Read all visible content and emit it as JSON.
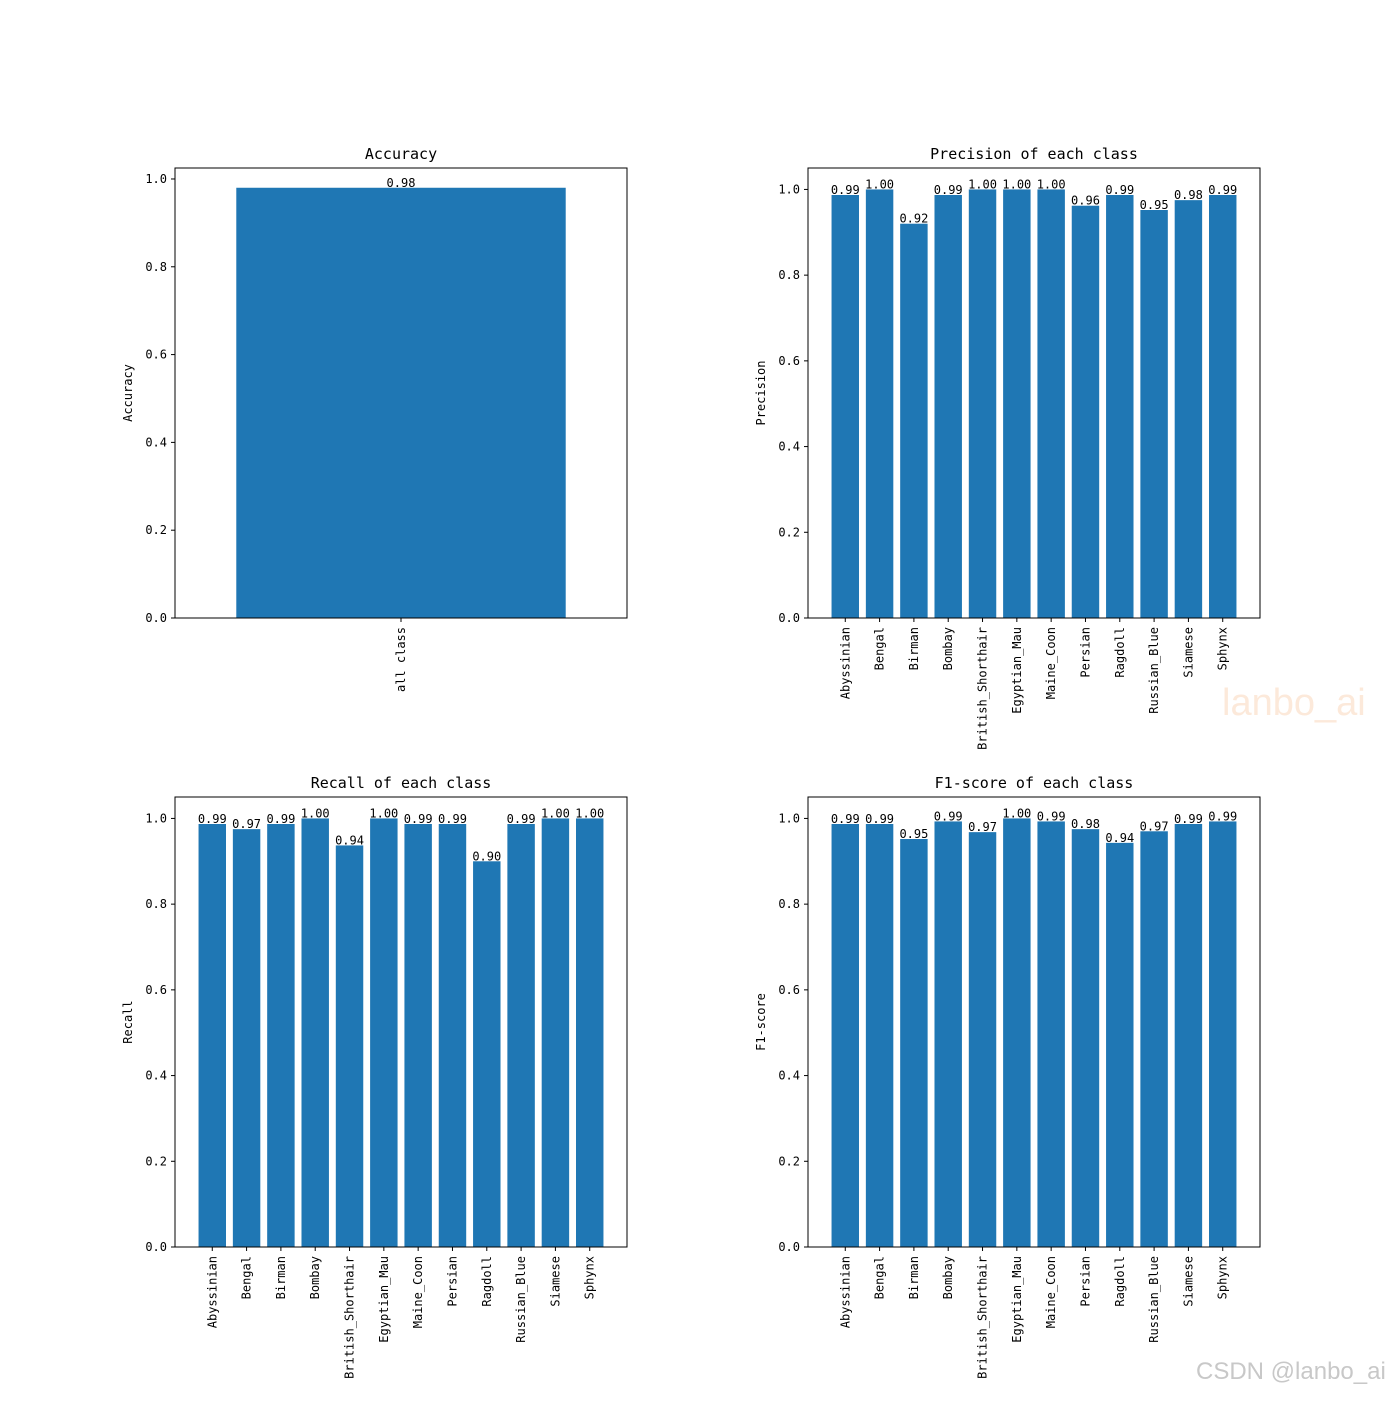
{
  "colors": {
    "bar": "#1f77b4"
  },
  "watermarks": {
    "center": "lanbo_ai",
    "corner": "CSDN @lanbo_ai"
  },
  "chart_data": [
    {
      "type": "bar",
      "title": "Accuracy",
      "ylabel": "Accuracy",
      "xlabel": "",
      "categories": [
        "all class"
      ],
      "values": [
        0.98
      ],
      "value_labels": [
        "0.98"
      ],
      "ylim": [
        0,
        1.025
      ],
      "yticks": [
        "0.0",
        "0.2",
        "0.4",
        "0.6",
        "0.8",
        "1.0"
      ],
      "grid": false
    },
    {
      "type": "bar",
      "title": "Precision of each class",
      "ylabel": "Precision",
      "xlabel": "",
      "categories": [
        "Abyssinian",
        "Bengal",
        "Birman",
        "Bombay",
        "British_Shorthair",
        "Egyptian_Mau",
        "Maine_Coon",
        "Persian",
        "Ragdoll",
        "Russian_Blue",
        "Siamese",
        "Sphynx"
      ],
      "values": [
        0.987,
        1.0,
        0.92,
        0.987,
        1.0,
        1.0,
        1.0,
        0.962,
        0.987,
        0.952,
        0.975,
        0.987
      ],
      "value_labels": [
        "0.99",
        "1.00",
        "0.92",
        "0.99",
        "1.00",
        "1.00",
        "1.00",
        "0.96",
        "0.99",
        "0.95",
        "0.98",
        "0.99"
      ],
      "ylim": [
        0,
        1.05
      ],
      "yticks": [
        "0.0",
        "0.2",
        "0.4",
        "0.6",
        "0.8",
        "1.0"
      ],
      "grid": false
    },
    {
      "type": "bar",
      "title": "Recall of each class",
      "ylabel": "Recall",
      "xlabel": "",
      "categories": [
        "Abyssinian",
        "Bengal",
        "Birman",
        "Bombay",
        "British_Shorthair",
        "Egyptian_Mau",
        "Maine_Coon",
        "Persian",
        "Ragdoll",
        "Russian_Blue",
        "Siamese",
        "Sphynx"
      ],
      "values": [
        0.987,
        0.975,
        0.987,
        1.0,
        0.937,
        1.0,
        0.987,
        0.987,
        0.9,
        0.987,
        1.0,
        1.0
      ],
      "value_labels": [
        "0.99",
        "0.97",
        "0.99",
        "1.00",
        "0.94",
        "1.00",
        "0.99",
        "0.99",
        "0.90",
        "0.99",
        "1.00",
        "1.00"
      ],
      "ylim": [
        0,
        1.05
      ],
      "yticks": [
        "0.0",
        "0.2",
        "0.4",
        "0.6",
        "0.8",
        "1.0"
      ],
      "grid": false
    },
    {
      "type": "bar",
      "title": "F1-score of each class",
      "ylabel": "F1-score",
      "xlabel": "",
      "categories": [
        "Abyssinian",
        "Bengal",
        "Birman",
        "Bombay",
        "British_Shorthair",
        "Egyptian_Mau",
        "Maine_Coon",
        "Persian",
        "Ragdoll",
        "Russian_Blue",
        "Siamese",
        "Sphynx"
      ],
      "values": [
        0.987,
        0.987,
        0.952,
        0.993,
        0.968,
        1.0,
        0.993,
        0.975,
        0.943,
        0.97,
        0.987,
        0.993
      ],
      "value_labels": [
        "0.99",
        "0.99",
        "0.95",
        "0.99",
        "0.97",
        "1.00",
        "0.99",
        "0.98",
        "0.94",
        "0.97",
        "0.99",
        "0.99"
      ],
      "ylim": [
        0,
        1.05
      ],
      "yticks": [
        "0.0",
        "0.2",
        "0.4",
        "0.6",
        "0.8",
        "1.0"
      ],
      "grid": false
    }
  ]
}
